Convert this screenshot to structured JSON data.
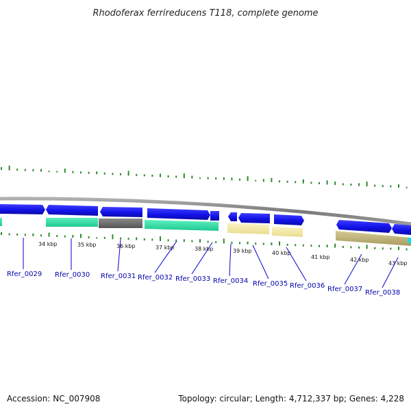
{
  "title": "Rhodoferax ferrireducens T118, complete genome",
  "footer": {
    "accession": "Accession: NC_007908",
    "summary": "Topology: circular; Length: 4,712,337 bp; Genes: 4,228"
  },
  "colors": {
    "background": "#ffffff",
    "backbone": "#8a8a8a",
    "forward_gene": "#1414e6",
    "gc_tick": "#2a8a2a",
    "label": "#0000aa",
    "teal_feature": "#33e0a8",
    "gray_feature": "#707070",
    "pale_yellow_feature": "#f3e9a8",
    "khaki_feature": "#c2b67a",
    "cyan_feature": "#18d8ee"
  },
  "kbp_labels": [
    "34 kbp",
    "35 kbp",
    "36 kbp",
    "37 kbp",
    "38 kbp",
    "39 kbp",
    "40 kbp",
    "41 kbp",
    "42 kbp",
    "43 kbp"
  ],
  "locus_tags": [
    "Rfer_0029",
    "Rfer_0030",
    "Rfer_0031",
    "Rfer_0032",
    "Rfer_0033",
    "Rfer_0034",
    "Rfer_0035",
    "Rfer_0036",
    "Rfer_0037",
    "Rfer_0038"
  ]
}
